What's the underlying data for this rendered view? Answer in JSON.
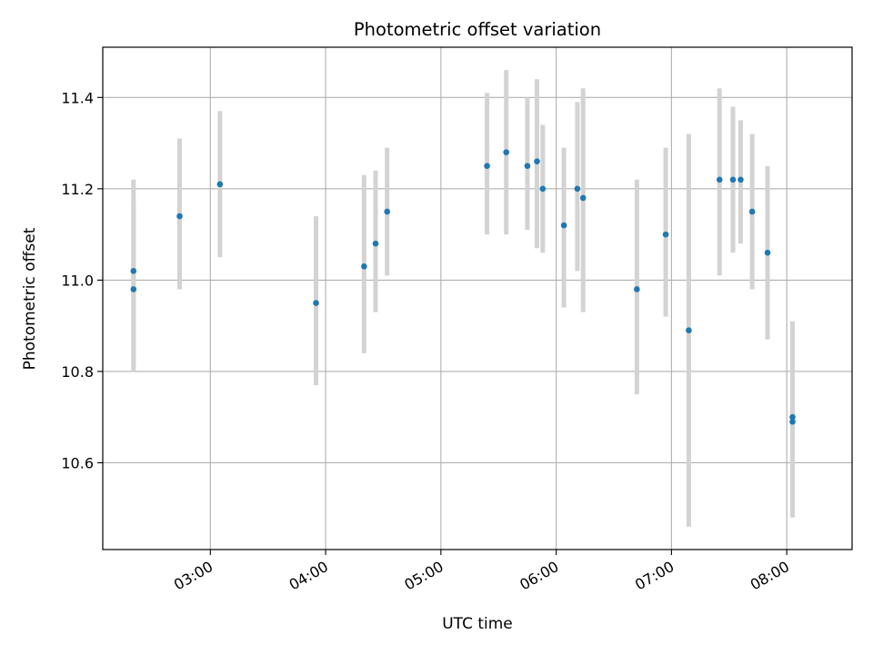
{
  "chart_data": {
    "type": "scatter",
    "title": "Photometric offset variation",
    "xlabel": "UTC time",
    "ylabel": "Photometric offset",
    "x_tick_labels": [
      "03:00",
      "04:00",
      "05:00",
      "06:00",
      "07:00",
      "08:00"
    ],
    "y_tick_labels": [
      "10.6",
      "10.8",
      "11.0",
      "11.2",
      "11.4"
    ],
    "xlim": [
      "02:04",
      "08:34"
    ],
    "ylim": [
      10.41,
      11.51
    ],
    "grid": true,
    "colors": {
      "point": "#1f77b4",
      "errorbar": "#d3d3d3",
      "grid": "#b0b0b0"
    },
    "points": [
      {
        "x": "02:20",
        "y": 10.98,
        "yerr_low": 10.8,
        "yerr_high": 11.17
      },
      {
        "x": "02:20",
        "y": 11.02,
        "yerr_low": 10.81,
        "yerr_high": 11.22
      },
      {
        "x": "02:44",
        "y": 11.14,
        "yerr_low": 10.98,
        "yerr_high": 11.31
      },
      {
        "x": "03:05",
        "y": 11.21,
        "yerr_low": 11.05,
        "yerr_high": 11.37
      },
      {
        "x": "03:55",
        "y": 10.95,
        "yerr_low": 10.77,
        "yerr_high": 11.14
      },
      {
        "x": "04:20",
        "y": 11.03,
        "yerr_low": 10.84,
        "yerr_high": 11.23
      },
      {
        "x": "04:26",
        "y": 11.08,
        "yerr_low": 10.93,
        "yerr_high": 11.24
      },
      {
        "x": "04:32",
        "y": 11.15,
        "yerr_low": 11.01,
        "yerr_high": 11.29
      },
      {
        "x": "05:24",
        "y": 11.25,
        "yerr_low": 11.1,
        "yerr_high": 11.41
      },
      {
        "x": "05:34",
        "y": 11.28,
        "yerr_low": 11.1,
        "yerr_high": 11.46
      },
      {
        "x": "05:45",
        "y": 11.25,
        "yerr_low": 11.11,
        "yerr_high": 11.4
      },
      {
        "x": "05:50",
        "y": 11.26,
        "yerr_low": 11.07,
        "yerr_high": 11.44
      },
      {
        "x": "05:53",
        "y": 11.2,
        "yerr_low": 11.06,
        "yerr_high": 11.34
      },
      {
        "x": "06:04",
        "y": 11.12,
        "yerr_low": 10.94,
        "yerr_high": 11.29
      },
      {
        "x": "06:11",
        "y": 11.2,
        "yerr_low": 11.02,
        "yerr_high": 11.39
      },
      {
        "x": "06:14",
        "y": 11.18,
        "yerr_low": 10.93,
        "yerr_high": 11.42
      },
      {
        "x": "06:42",
        "y": 10.98,
        "yerr_low": 10.75,
        "yerr_high": 11.22
      },
      {
        "x": "06:57",
        "y": 11.1,
        "yerr_low": 10.92,
        "yerr_high": 11.29
      },
      {
        "x": "07:09",
        "y": 10.89,
        "yerr_low": 10.46,
        "yerr_high": 11.32
      },
      {
        "x": "07:25",
        "y": 11.22,
        "yerr_low": 11.01,
        "yerr_high": 11.42
      },
      {
        "x": "07:32",
        "y": 11.22,
        "yerr_low": 11.06,
        "yerr_high": 11.38
      },
      {
        "x": "07:36",
        "y": 11.22,
        "yerr_low": 11.08,
        "yerr_high": 11.35
      },
      {
        "x": "07:42",
        "y": 11.15,
        "yerr_low": 10.98,
        "yerr_high": 11.32
      },
      {
        "x": "07:50",
        "y": 11.06,
        "yerr_low": 10.87,
        "yerr_high": 11.25
      },
      {
        "x": "08:03",
        "y": 10.7,
        "yerr_low": 10.48,
        "yerr_high": 10.91
      },
      {
        "x": "08:03",
        "y": 10.69,
        "yerr_low": 10.49,
        "yerr_high": 10.89
      }
    ]
  }
}
